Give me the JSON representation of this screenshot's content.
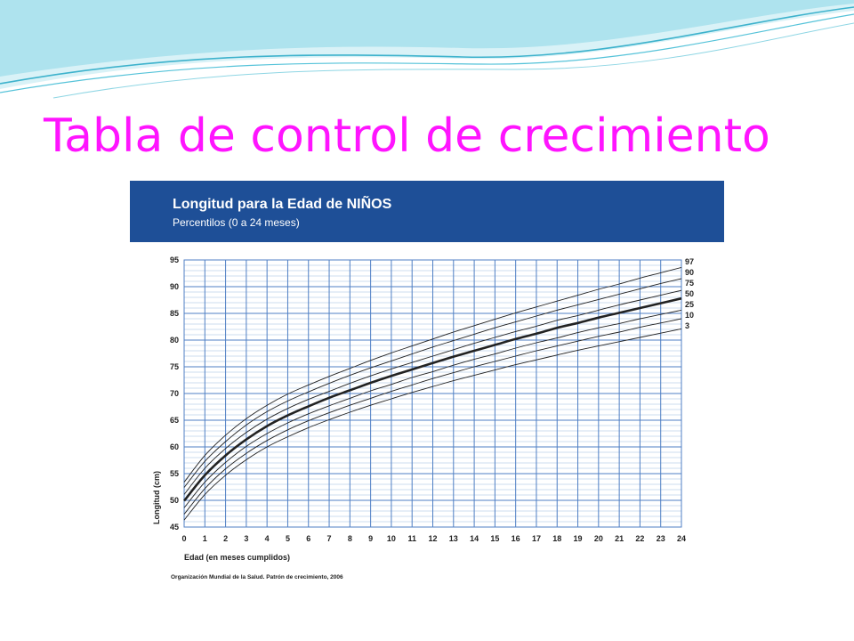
{
  "slide": {
    "title": "Tabla de control de crecimiento"
  },
  "colors": {
    "title": "#ff14ff",
    "header_band": "#1e4f97",
    "grid": "#4f7fc4",
    "curve": "#222222",
    "decoration": "#56c3d9"
  },
  "chart_data": {
    "type": "line",
    "title": "Longitud para la Edad de NIÑOS",
    "subtitle": "Percentilos (0 a 24 meses)",
    "xlabel": "Edad (en meses cumplidos)",
    "ylabel": "Longitud (cm)",
    "source": "Organización Mundial de la Salud. Patrón de crecimiento, 2006",
    "xlim": [
      0,
      24
    ],
    "ylim": [
      45,
      95
    ],
    "x_ticks": [
      "0",
      "1",
      "2",
      "3",
      "4",
      "5",
      "6",
      "7",
      "8",
      "9",
      "10",
      "11",
      "12",
      "13",
      "14",
      "15",
      "16",
      "17",
      "18",
      "19",
      "20",
      "21",
      "22",
      "23",
      "24"
    ],
    "y_ticks": [
      "45",
      "50",
      "55",
      "60",
      "65",
      "70",
      "75",
      "80",
      "85",
      "90",
      "95"
    ],
    "grid": true,
    "legend": "right",
    "x": [
      0,
      1,
      2,
      3,
      4,
      5,
      6,
      7,
      8,
      9,
      10,
      11,
      12,
      13,
      14,
      15,
      16,
      17,
      18,
      19,
      20,
      21,
      22,
      23,
      24
    ],
    "series": [
      {
        "name": "97",
        "bold": false,
        "values": [
          53.4,
          58.4,
          62.2,
          65.3,
          67.8,
          69.9,
          71.6,
          73.2,
          74.7,
          76.2,
          77.6,
          78.9,
          80.2,
          81.5,
          82.7,
          83.9,
          85.1,
          86.2,
          87.3,
          88.4,
          89.5,
          90.5,
          91.6,
          92.6,
          93.6
        ]
      },
      {
        "name": "90",
        "bold": false,
        "values": [
          52.4,
          57.3,
          61.0,
          64.1,
          66.6,
          68.6,
          70.3,
          71.9,
          73.4,
          74.8,
          76.1,
          77.4,
          78.7,
          79.9,
          81.1,
          82.3,
          83.4,
          84.5,
          85.6,
          86.6,
          87.6,
          88.6,
          89.6,
          90.6,
          91.5
        ]
      },
      {
        "name": "75",
        "bold": false,
        "values": [
          51.1,
          56.0,
          59.7,
          62.7,
          65.2,
          67.2,
          68.9,
          70.4,
          71.9,
          73.3,
          74.6,
          75.8,
          77.0,
          78.2,
          79.4,
          80.5,
          81.6,
          82.6,
          83.7,
          84.6,
          85.6,
          86.6,
          87.5,
          88.4,
          89.3
        ]
      },
      {
        "name": "50",
        "bold": true,
        "values": [
          49.9,
          54.7,
          58.4,
          61.4,
          63.9,
          65.9,
          67.6,
          69.2,
          70.6,
          72.0,
          73.3,
          74.5,
          75.7,
          76.9,
          78.0,
          79.1,
          80.2,
          81.2,
          82.3,
          83.2,
          84.2,
          85.1,
          86.0,
          86.9,
          87.8
        ]
      },
      {
        "name": "25",
        "bold": false,
        "values": [
          48.6,
          53.4,
          57.1,
          60.1,
          62.5,
          64.5,
          66.2,
          67.7,
          69.1,
          70.5,
          71.7,
          73.0,
          74.1,
          75.3,
          76.4,
          77.4,
          78.5,
          79.5,
          80.4,
          81.4,
          82.3,
          83.1,
          84.0,
          84.8,
          85.6
        ]
      },
      {
        "name": "10",
        "bold": false,
        "values": [
          47.4,
          52.2,
          55.9,
          58.8,
          61.2,
          63.2,
          64.9,
          66.4,
          67.8,
          69.1,
          70.4,
          71.6,
          72.8,
          73.9,
          75.0,
          76.0,
          77.0,
          78.0,
          78.9,
          79.8,
          80.7,
          81.5,
          82.4,
          83.2,
          84.0
        ]
      },
      {
        "name": "3",
        "bold": false,
        "values": [
          46.3,
          51.1,
          54.7,
          57.6,
          60.0,
          61.9,
          63.6,
          65.1,
          66.5,
          67.8,
          69.0,
          70.2,
          71.3,
          72.4,
          73.4,
          74.4,
          75.4,
          76.3,
          77.2,
          78.1,
          78.9,
          79.7,
          80.5,
          81.3,
          82.1
        ]
      }
    ]
  }
}
